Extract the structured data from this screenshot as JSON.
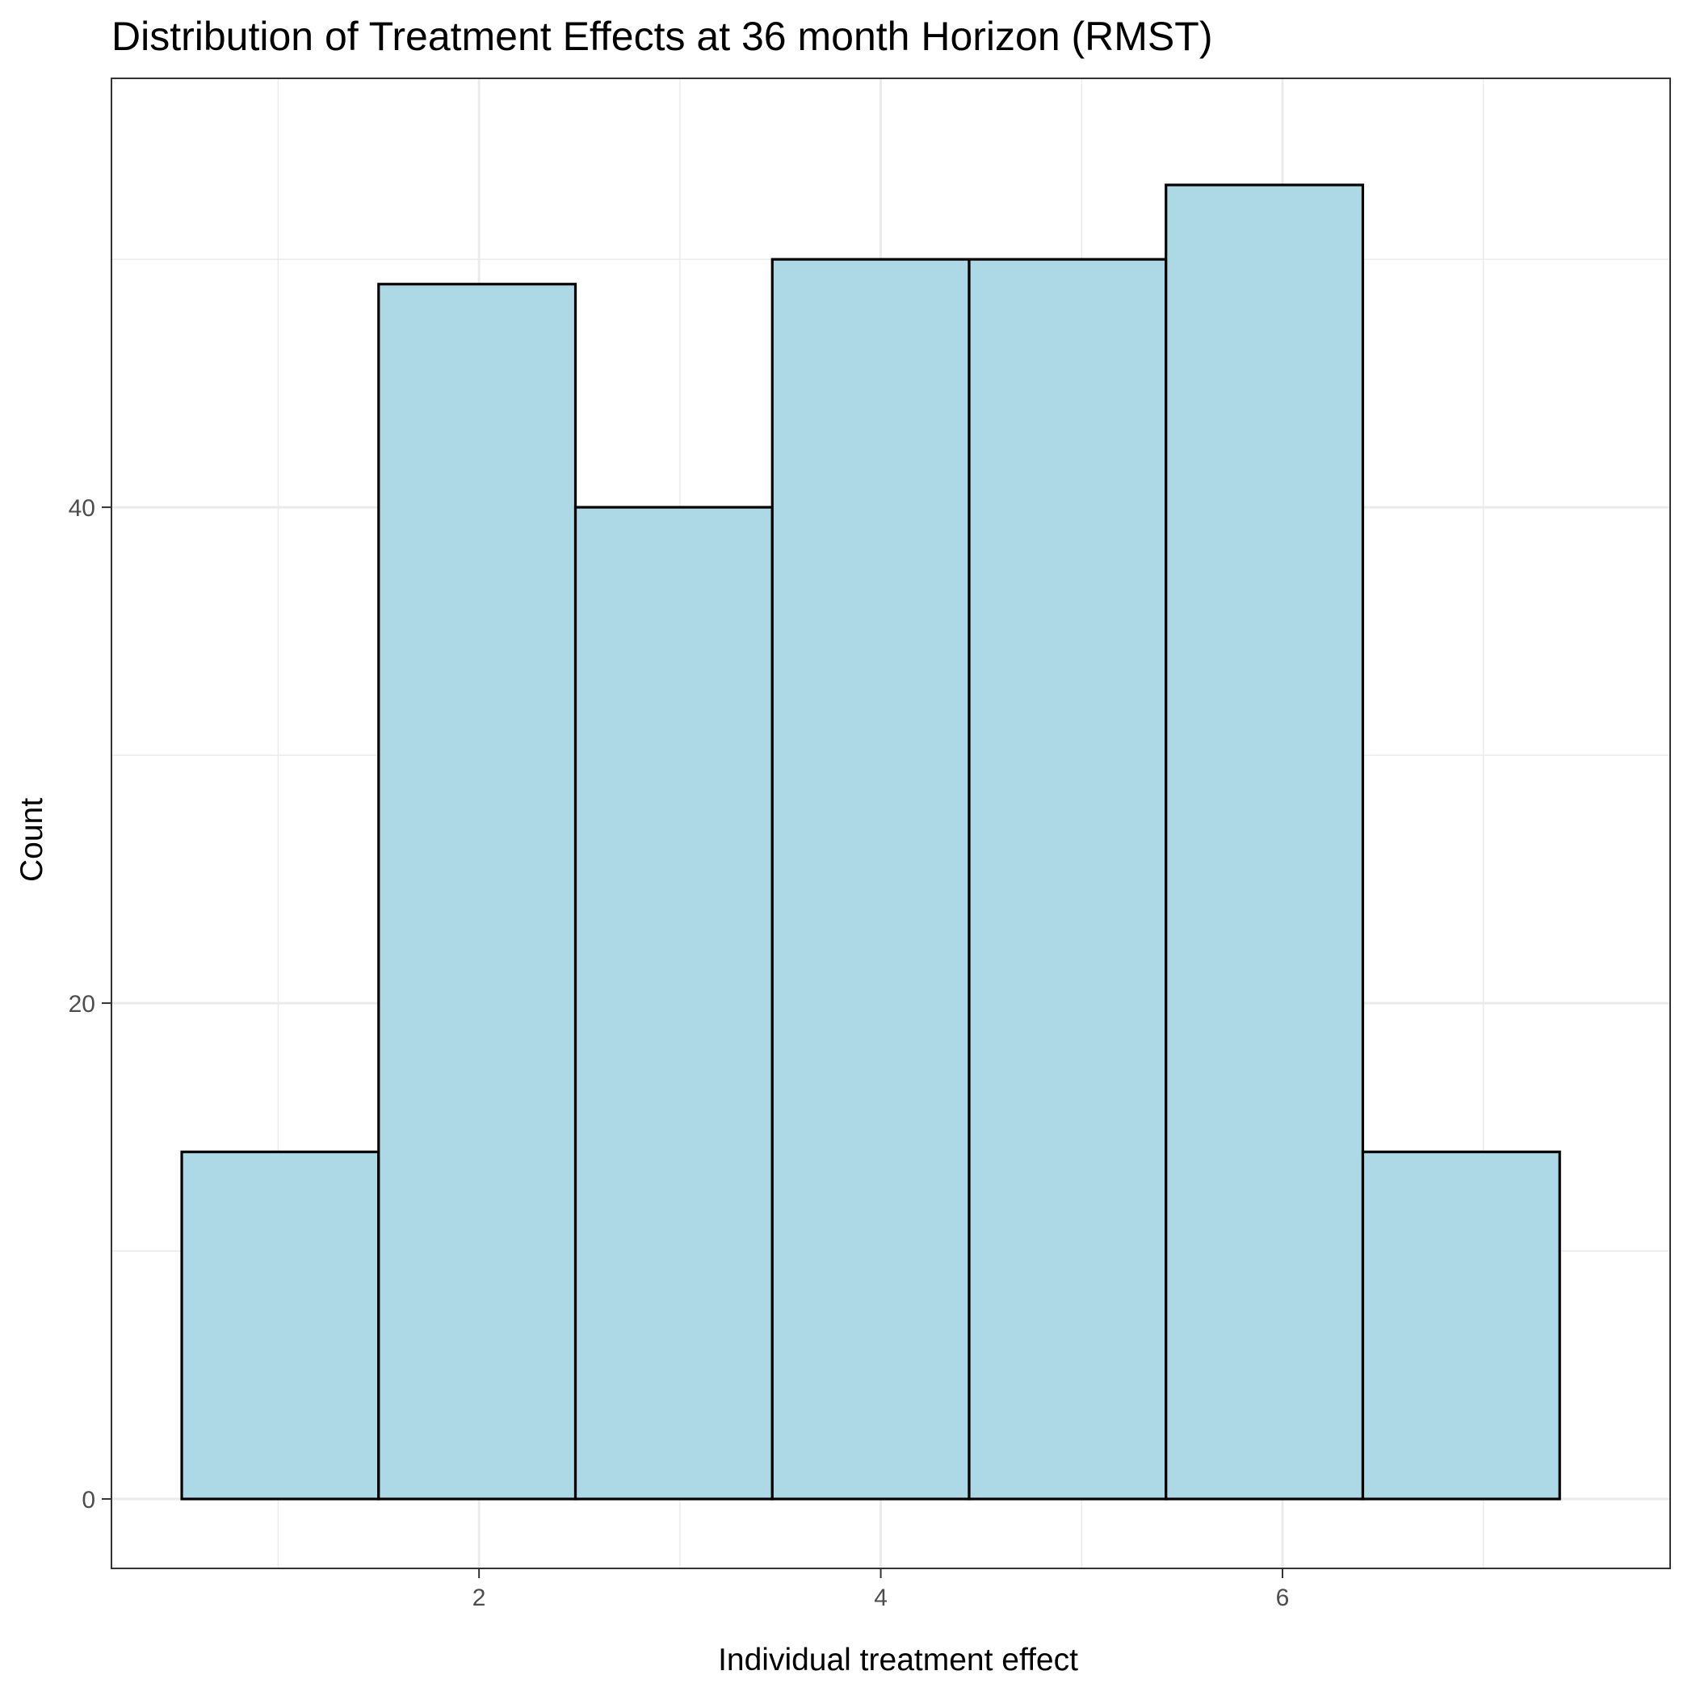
{
  "chart_data": {
    "type": "bar",
    "title": "Distribution of Treatment Effects at 36 month Horizon (RMST)",
    "xlabel": "Individual treatment effect",
    "ylabel": "Count",
    "xlim": [
      0.17,
      7.93
    ],
    "ylim": [
      -2.8,
      57.3
    ],
    "x_ticks": [
      2,
      4,
      6
    ],
    "y_ticks": [
      0,
      20,
      40
    ],
    "x_minor_gridlines": [
      1,
      3,
      5,
      7
    ],
    "y_minor_gridlines": [
      10,
      30,
      50
    ],
    "grid": true,
    "bins": [
      {
        "x0": 0.52,
        "x1": 1.5,
        "count": 14
      },
      {
        "x0": 1.5,
        "x1": 2.48,
        "count": 49
      },
      {
        "x0": 2.48,
        "x1": 3.46,
        "count": 40
      },
      {
        "x0": 3.46,
        "x1": 4.44,
        "count": 50
      },
      {
        "x0": 4.44,
        "x1": 5.42,
        "count": 50
      },
      {
        "x0": 5.42,
        "x1": 6.4,
        "count": 53
      },
      {
        "x0": 6.4,
        "x1": 7.38,
        "count": 14
      }
    ],
    "colors": {
      "bar_fill": "#add8e6",
      "bar_stroke": "#000000",
      "grid": "#ebebeb",
      "panel_border": "#333333",
      "tick_text": "#4d4d4d"
    }
  }
}
